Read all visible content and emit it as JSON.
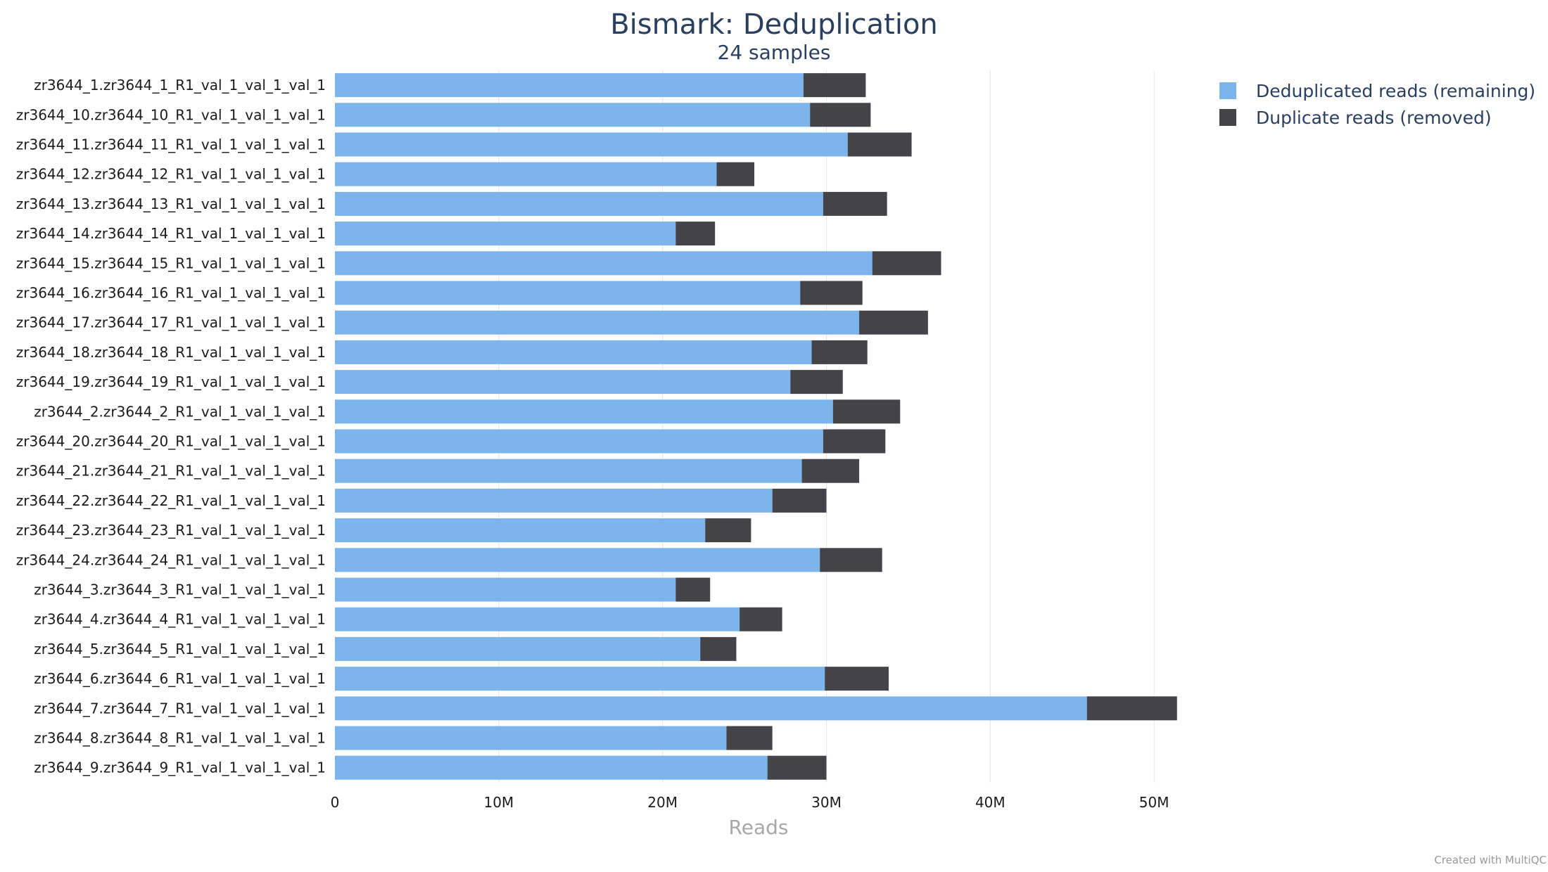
{
  "chart_data": {
    "type": "bar",
    "orientation": "horizontal",
    "stacked": true,
    "title": "Bismark: Deduplication",
    "subtitle": "24 samples",
    "xlabel": "Reads",
    "ylabel": "",
    "xlim": [
      0,
      53000000
    ],
    "xticks": [
      0,
      10000000,
      20000000,
      30000000,
      40000000,
      50000000
    ],
    "xtick_labels": [
      "0",
      "10M",
      "20M",
      "30M",
      "40M",
      "50M"
    ],
    "grid": "vertical",
    "legend_position": "top-right",
    "credit": "Created with MultiQC",
    "categories": [
      "zr3644_1.zr3644_1_R1_val_1_val_1_val_1",
      "zr3644_10.zr3644_10_R1_val_1_val_1_val_1",
      "zr3644_11.zr3644_11_R1_val_1_val_1_val_1",
      "zr3644_12.zr3644_12_R1_val_1_val_1_val_1",
      "zr3644_13.zr3644_13_R1_val_1_val_1_val_1",
      "zr3644_14.zr3644_14_R1_val_1_val_1_val_1",
      "zr3644_15.zr3644_15_R1_val_1_val_1_val_1",
      "zr3644_16.zr3644_16_R1_val_1_val_1_val_1",
      "zr3644_17.zr3644_17_R1_val_1_val_1_val_1",
      "zr3644_18.zr3644_18_R1_val_1_val_1_val_1",
      "zr3644_19.zr3644_19_R1_val_1_val_1_val_1",
      "zr3644_2.zr3644_2_R1_val_1_val_1_val_1",
      "zr3644_20.zr3644_20_R1_val_1_val_1_val_1",
      "zr3644_21.zr3644_21_R1_val_1_val_1_val_1",
      "zr3644_22.zr3644_22_R1_val_1_val_1_val_1",
      "zr3644_23.zr3644_23_R1_val_1_val_1_val_1",
      "zr3644_24.zr3644_24_R1_val_1_val_1_val_1",
      "zr3644_3.zr3644_3_R1_val_1_val_1_val_1",
      "zr3644_4.zr3644_4_R1_val_1_val_1_val_1",
      "zr3644_5.zr3644_5_R1_val_1_val_1_val_1",
      "zr3644_6.zr3644_6_R1_val_1_val_1_val_1",
      "zr3644_7.zr3644_7_R1_val_1_val_1_val_1",
      "zr3644_8.zr3644_8_R1_val_1_val_1_val_1",
      "zr3644_9.zr3644_9_R1_val_1_val_1_val_1"
    ],
    "series": [
      {
        "name": "Deduplicated reads (remaining)",
        "color": "#7cb5ec",
        "values": [
          28600000,
          29000000,
          31300000,
          23300000,
          29800000,
          20800000,
          32800000,
          28400000,
          32000000,
          29100000,
          27800000,
          30400000,
          29800000,
          28500000,
          26700000,
          22600000,
          29600000,
          20800000,
          24700000,
          22300000,
          29900000,
          45900000,
          23900000,
          26400000
        ]
      },
      {
        "name": "Duplicate reads (removed)",
        "color": "#434348",
        "values": [
          3800000,
          3700000,
          3900000,
          2300000,
          3900000,
          2400000,
          4200000,
          3800000,
          4200000,
          3400000,
          3200000,
          4100000,
          3800000,
          3500000,
          3300000,
          2800000,
          3800000,
          2100000,
          2600000,
          2200000,
          3900000,
          5500000,
          2800000,
          3600000
        ]
      }
    ]
  }
}
